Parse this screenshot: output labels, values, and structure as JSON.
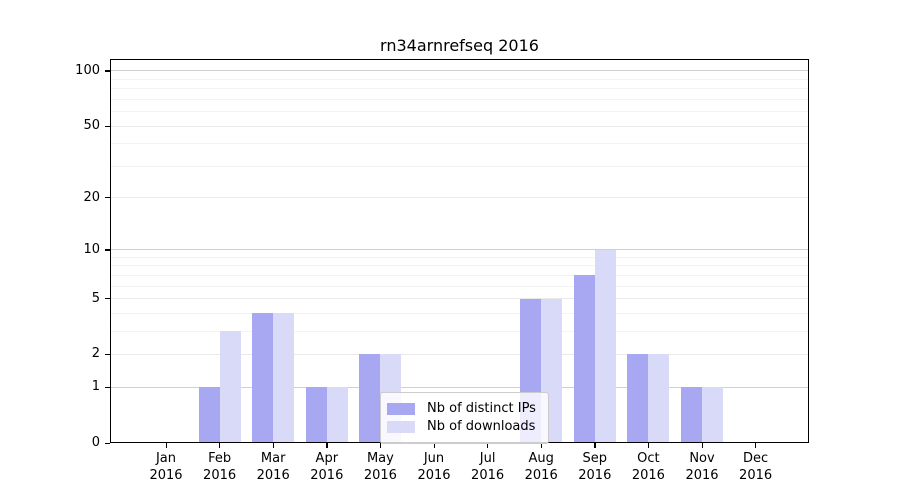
{
  "chart_data": {
    "type": "bar",
    "title": "rn34arnrefseq 2016",
    "categories": [
      "Jan",
      "Feb",
      "Mar",
      "Apr",
      "May",
      "Jun",
      "Jul",
      "Aug",
      "Sep",
      "Oct",
      "Nov",
      "Dec"
    ],
    "year_label": "2016",
    "series": [
      {
        "name": "Nb of distinct IPs",
        "color": "#a7a7f2",
        "values": [
          0,
          1,
          4,
          1,
          2,
          0,
          0,
          5,
          7,
          2,
          1,
          0
        ]
      },
      {
        "name": "Nb of downloads",
        "color": "#d9d9f8",
        "values": [
          0,
          3,
          4,
          1,
          2,
          0,
          0,
          5,
          10,
          2,
          1,
          0
        ]
      }
    ],
    "yticks": [
      0,
      1,
      2,
      5,
      10,
      20,
      50,
      100
    ],
    "minor_yticks": [
      3,
      4,
      6,
      7,
      8,
      9,
      30,
      40,
      60,
      70,
      80,
      90
    ],
    "scale": "log1p",
    "ylim": [
      0,
      115
    ],
    "grid": true,
    "legend_position": "lower-center"
  },
  "colors": {
    "background": "#ffffff",
    "axis": "#000000",
    "grid_major": "#d0d0d0",
    "grid_labeled": "#e9e9e9",
    "grid_minor": "#f3f3f3",
    "text": "#000000"
  }
}
